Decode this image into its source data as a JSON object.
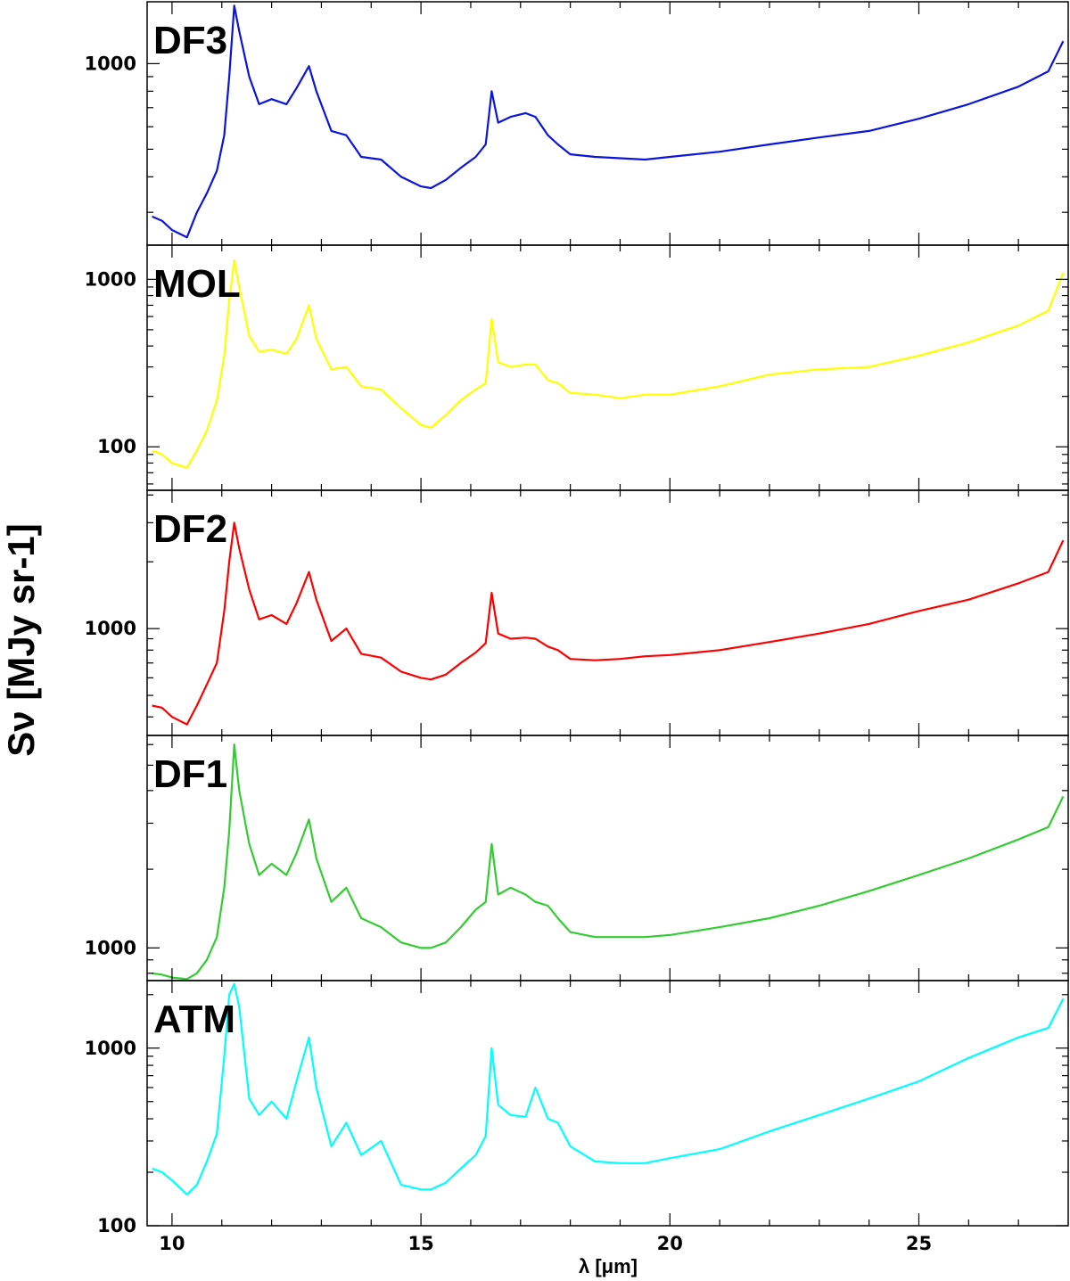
{
  "chart_data": {
    "type": "line",
    "xlabel": "λ [μm]",
    "ylabel": "Sν [MJy sr-1]",
    "xlim": [
      9.5,
      28.0
    ],
    "x_ticks": [
      "10",
      "15",
      "20",
      "25"
    ],
    "grid": false,
    "legend": "none",
    "panels": [
      {
        "name": "DF3",
        "color": "#0a14dc",
        "y_scale": "log",
        "ylim": [
          230,
          1650
        ],
        "ytick_labels": [
          "1000"
        ],
        "x": [
          9.6,
          9.8,
          10.0,
          10.3,
          10.5,
          10.7,
          10.9,
          11.05,
          11.15,
          11.25,
          11.35,
          11.55,
          11.75,
          12.0,
          12.3,
          12.5,
          12.75,
          12.9,
          13.2,
          13.5,
          13.8,
          14.2,
          14.6,
          15.0,
          15.2,
          15.5,
          15.8,
          16.1,
          16.3,
          16.42,
          16.55,
          16.8,
          17.1,
          17.3,
          17.55,
          17.75,
          18.0,
          18.5,
          19.0,
          19.5,
          20.0,
          21.0,
          22.0,
          23.0,
          24.0,
          25.0,
          26.0,
          27.0,
          27.6,
          27.9
        ],
        "y": [
          290,
          280,
          260,
          245,
          300,
          350,
          420,
          560,
          900,
          1600,
          1300,
          900,
          720,
          750,
          720,
          820,
          980,
          800,
          580,
          560,
          470,
          460,
          400,
          370,
          365,
          390,
          430,
          470,
          520,
          800,
          620,
          650,
          670,
          650,
          560,
          520,
          480,
          470,
          465,
          460,
          470,
          490,
          520,
          550,
          580,
          640,
          720,
          830,
          940,
          1200
        ]
      },
      {
        "name": "MOL",
        "color": "#ffff00",
        "y_scale": "log",
        "ylim": [
          55,
          1600
        ],
        "ytick_labels": [
          "100",
          "1000"
        ],
        "x": [
          9.6,
          9.8,
          10.0,
          10.3,
          10.5,
          10.7,
          10.9,
          11.05,
          11.15,
          11.25,
          11.35,
          11.55,
          11.75,
          12.0,
          12.3,
          12.5,
          12.75,
          12.9,
          13.2,
          13.5,
          13.8,
          14.2,
          14.6,
          15.0,
          15.2,
          15.5,
          15.8,
          16.1,
          16.3,
          16.42,
          16.55,
          16.8,
          17.1,
          17.3,
          17.55,
          17.75,
          18.0,
          18.5,
          19.0,
          19.5,
          20.0,
          21.0,
          22.0,
          23.0,
          24.0,
          25.0,
          26.0,
          27.0,
          27.6,
          27.9
        ],
        "y": [
          95,
          90,
          80,
          75,
          95,
          125,
          190,
          350,
          750,
          1300,
          900,
          460,
          370,
          380,
          360,
          440,
          700,
          440,
          290,
          300,
          230,
          220,
          170,
          135,
          130,
          155,
          190,
          220,
          240,
          580,
          320,
          300,
          310,
          310,
          250,
          240,
          210,
          205,
          195,
          205,
          205,
          230,
          270,
          290,
          300,
          350,
          420,
          530,
          650,
          1100
        ]
      },
      {
        "name": "DF2",
        "color": "#ff0000",
        "y_scale": "log",
        "ylim": [
          330,
          4200
        ],
        "ytick_labels": [
          "1000"
        ],
        "x": [
          9.6,
          9.8,
          10.0,
          10.3,
          10.5,
          10.7,
          10.9,
          11.05,
          11.15,
          11.25,
          11.35,
          11.55,
          11.75,
          12.0,
          12.3,
          12.5,
          12.75,
          12.9,
          13.2,
          13.5,
          13.8,
          14.2,
          14.6,
          15.0,
          15.2,
          15.5,
          15.8,
          16.1,
          16.3,
          16.42,
          16.55,
          16.8,
          17.1,
          17.3,
          17.55,
          17.75,
          18.0,
          18.5,
          19.0,
          19.5,
          20.0,
          21.0,
          22.0,
          23.0,
          24.0,
          25.0,
          26.0,
          27.0,
          27.6,
          27.9
        ],
        "y": [
          450,
          440,
          400,
          370,
          450,
          560,
          700,
          1200,
          2000,
          3000,
          2300,
          1500,
          1100,
          1150,
          1050,
          1300,
          1800,
          1350,
          880,
          1000,
          770,
          740,
          640,
          600,
          590,
          620,
          700,
          780,
          860,
          1450,
          950,
          900,
          910,
          900,
          830,
          800,
          730,
          720,
          730,
          750,
          760,
          800,
          870,
          950,
          1050,
          1200,
          1350,
          1600,
          1800,
          2500
        ]
      },
      {
        "name": "DF1",
        "color": "#33cc33",
        "y_scale": "log",
        "ylim": [
          750,
          6500
        ],
        "ytick_labels": [
          "1000"
        ],
        "x": [
          9.6,
          9.8,
          10.0,
          10.3,
          10.5,
          10.7,
          10.9,
          11.05,
          11.15,
          11.25,
          11.35,
          11.55,
          11.75,
          12.0,
          12.3,
          12.5,
          12.75,
          12.9,
          13.2,
          13.5,
          13.8,
          14.2,
          14.6,
          15.0,
          15.2,
          15.5,
          15.8,
          16.1,
          16.3,
          16.42,
          16.55,
          16.8,
          17.1,
          17.3,
          17.55,
          17.75,
          18.0,
          18.5,
          19.0,
          19.5,
          20.0,
          21.0,
          22.0,
          23.0,
          24.0,
          25.0,
          26.0,
          27.0,
          27.6,
          27.9
        ],
        "y": [
          800,
          790,
          770,
          760,
          800,
          900,
          1100,
          1700,
          2800,
          6000,
          4000,
          2500,
          1900,
          2100,
          1900,
          2300,
          3100,
          2200,
          1500,
          1700,
          1300,
          1200,
          1050,
          1000,
          1000,
          1050,
          1200,
          1400,
          1500,
          2500,
          1600,
          1700,
          1600,
          1500,
          1450,
          1300,
          1150,
          1100,
          1100,
          1100,
          1120,
          1200,
          1300,
          1450,
          1650,
          1900,
          2200,
          2600,
          2900,
          3800
        ]
      },
      {
        "name": "ATM",
        "color": "#00ffff",
        "y_scale": "log",
        "ylim": [
          100,
          2400
        ],
        "ytick_labels": [
          "100",
          "1000"
        ],
        "x": [
          9.6,
          9.8,
          10.0,
          10.3,
          10.5,
          10.7,
          10.9,
          11.05,
          11.15,
          11.25,
          11.35,
          11.55,
          11.75,
          12.0,
          12.3,
          12.5,
          12.75,
          12.9,
          13.2,
          13.5,
          13.8,
          14.2,
          14.6,
          15.0,
          15.2,
          15.5,
          15.8,
          16.1,
          16.3,
          16.42,
          16.55,
          16.8,
          17.1,
          17.3,
          17.55,
          17.75,
          18.0,
          18.5,
          19.0,
          19.5,
          20.0,
          21.0,
          22.0,
          23.0,
          24.0,
          25.0,
          26.0,
          27.0,
          27.6,
          27.9
        ],
        "y": [
          210,
          200,
          180,
          150,
          170,
          230,
          330,
          900,
          2000,
          2300,
          1700,
          520,
          420,
          500,
          400,
          650,
          1150,
          600,
          280,
          380,
          250,
          300,
          170,
          160,
          160,
          175,
          210,
          250,
          320,
          1000,
          480,
          420,
          410,
          600,
          400,
          380,
          280,
          230,
          225,
          225,
          240,
          270,
          340,
          420,
          520,
          650,
          880,
          1150,
          1300,
          1900
        ]
      }
    ]
  }
}
